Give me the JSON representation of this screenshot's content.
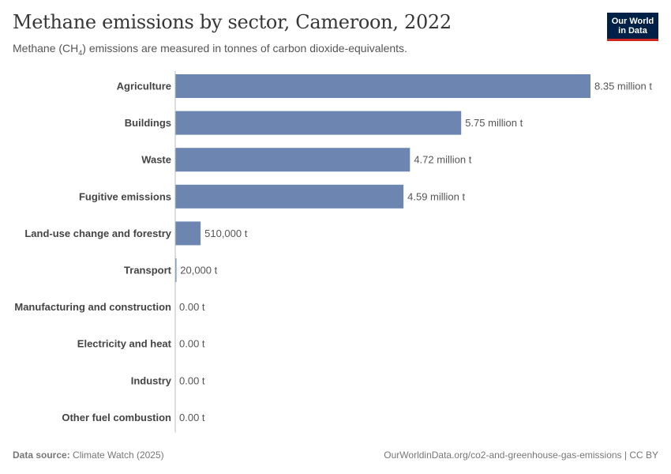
{
  "header": {
    "title": "Methane emissions by sector, Cameroon, 2022",
    "subtitle_prefix": "Methane (CH",
    "subtitle_sub": "4",
    "subtitle_suffix": ") emissions are measured in tonnes of carbon dioxide-equivalents."
  },
  "logo": {
    "line1": "Our World",
    "line2": "in Data"
  },
  "footer": {
    "source_label": "Data source:",
    "source_value": "Climate Watch (2025)",
    "url": "OurWorldinData.org/co2-and-greenhouse-gas-emissions | CC BY"
  },
  "colors": {
    "bar": "#6d86b1",
    "label": "#444444",
    "value_label": "#555555",
    "logo_bg": "#002147",
    "logo_accent": "#ce261e"
  },
  "chart_data": {
    "type": "bar",
    "orientation": "horizontal",
    "categories": [
      "Agriculture",
      "Buildings",
      "Waste",
      "Fugitive emissions",
      "Land-use change and forestry",
      "Transport",
      "Manufacturing and construction",
      "Electricity and heat",
      "Industry",
      "Other fuel combustion"
    ],
    "values": [
      8350000,
      5750000,
      4720000,
      4590000,
      510000,
      20000,
      0,
      0,
      0,
      0
    ],
    "value_labels": [
      "8.35 million t",
      "5.75 million t",
      "4.72 million t",
      "4.59 million t",
      "510,000 t",
      "20,000 t",
      "0.00 t",
      "0.00 t",
      "0.00 t",
      "0.00 t"
    ],
    "unit": "t",
    "xlim": [
      0,
      8350000
    ],
    "grid": false,
    "legend": "none"
  }
}
